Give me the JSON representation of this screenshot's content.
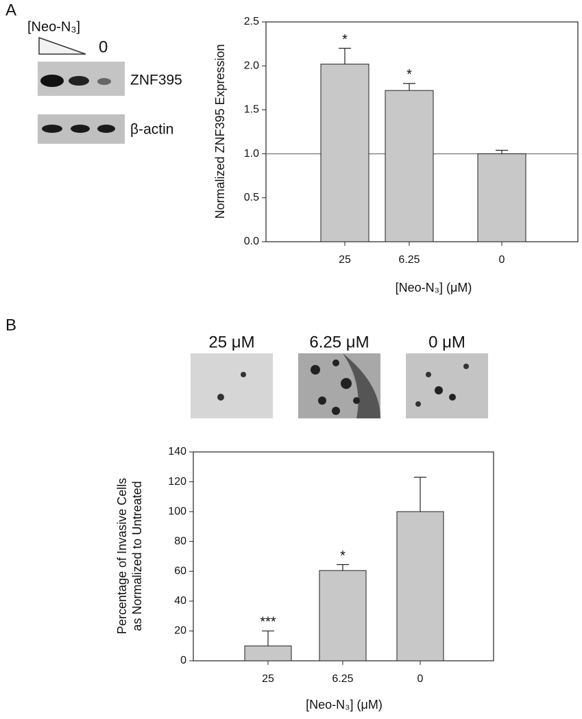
{
  "panel_labels": [
    "A",
    "B"
  ],
  "blot": {
    "treatment_label": "[Neo-N₃]",
    "zero_label": "0",
    "bands": [
      "ZNF395",
      "β-actin"
    ]
  },
  "micrographs": {
    "labels": [
      "25 μM",
      "6.25 μM",
      "0 μM"
    ]
  },
  "chart_data": [
    {
      "type": "bar",
      "y_label": [
        "Normalized ZNF395 Expression"
      ],
      "x_label": "[Neo-N₃] (μM)",
      "categories": [
        "25",
        "6.25",
        "0"
      ],
      "values": [
        2.02,
        1.72,
        1.0
      ],
      "errors": [
        0.18,
        0.08,
        0.04
      ],
      "annotations": [
        "*",
        "*",
        null
      ],
      "color": "#c8c8c8",
      "ylim": [
        0,
        2.5
      ],
      "yticks": [
        {
          "value": 0,
          "label": "0.0"
        },
        {
          "value": 0.5,
          "label": "0.5"
        },
        {
          "value": 1,
          "label": "1.0"
        },
        {
          "value": 1.5,
          "label": "1.5"
        },
        {
          "value": 2,
          "label": "2.0"
        },
        {
          "value": 2.5,
          "label": "2.5"
        }
      ],
      "reference_line": 1
    },
    {
      "type": "bar",
      "y_label": [
        "Percentage of Invasive Cells",
        "as Normalized to Untreated"
      ],
      "x_label": "[Neo-N₃] (μM)",
      "categories": [
        "25",
        "6.25",
        "0"
      ],
      "values": [
        10,
        60.5,
        100
      ],
      "errors": [
        10,
        4,
        23
      ],
      "annotations": [
        "***",
        "*",
        null
      ],
      "color": "#c8c8c8",
      "ylim": [
        0,
        140
      ],
      "yticks": [
        0,
        20,
        40,
        60,
        80,
        100,
        120,
        140
      ]
    }
  ]
}
